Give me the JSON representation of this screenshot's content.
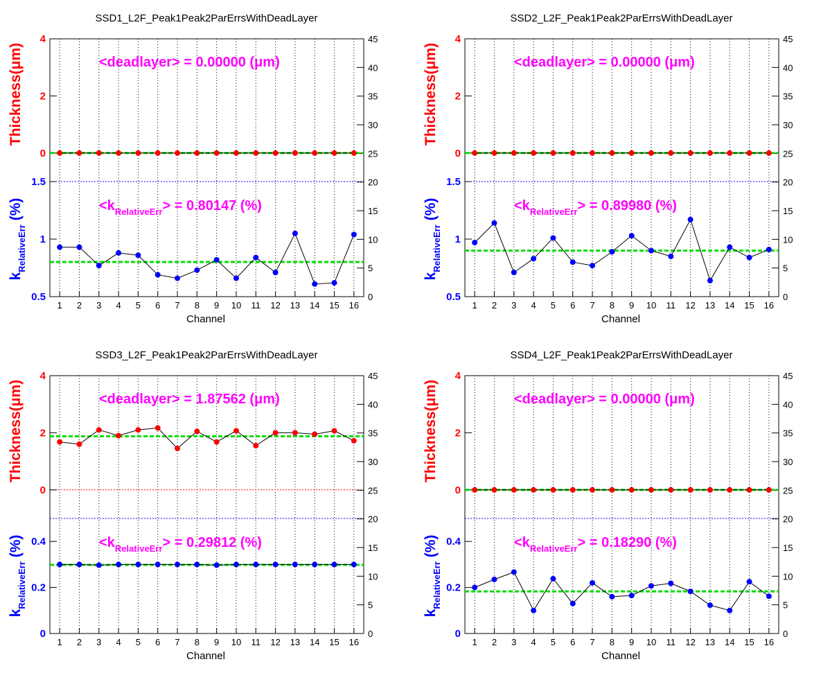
{
  "chart_data": [
    {
      "type": "scatter",
      "title": "SSD1_L2F_Peak1Peak2ParErrsWithDeadLayer",
      "xlabel": "Channel",
      "ylabel_top": "Thickness(μm)",
      "ylabel_bottom": "k",
      "ylabel_bottom_sub": "RelativeErr",
      "ylabel_bottom_unit": " (%)",
      "x": [
        1,
        2,
        3,
        4,
        5,
        6,
        7,
        8,
        9,
        10,
        11,
        12,
        13,
        14,
        15,
        16
      ],
      "x_ticks": [
        "1",
        "2",
        "3",
        "4",
        "5",
        "6",
        "7",
        "8",
        "9",
        "10",
        "11",
        "12",
        "13",
        "14",
        "15",
        "16"
      ],
      "top_ticks": [
        "0",
        "2",
        "4"
      ],
      "top_ylim": [
        -1,
        4
      ],
      "bottom_ticks": [
        "0.5",
        "1",
        "1.5"
      ],
      "bottom_ylim": [
        0.5,
        1.5
      ],
      "right_ticks": [
        "0",
        "5",
        "10",
        "15",
        "20",
        "25",
        "30",
        "35",
        "40",
        "45"
      ],
      "right_ylim": [
        0,
        45
      ],
      "series": [
        {
          "name": "deadlayer",
          "values": [
            0,
            0,
            0,
            0,
            0,
            0,
            0,
            0,
            0,
            0,
            0,
            0,
            0,
            0,
            0,
            0
          ]
        },
        {
          "name": "kRelativeErr",
          "values": [
            0.93,
            0.93,
            0.77,
            0.88,
            0.86,
            0.69,
            0.66,
            0.73,
            0.82,
            0.66,
            0.84,
            0.71,
            1.05,
            0.61,
            0.62,
            1.04
          ]
        }
      ],
      "mean_top": 0.0,
      "mean_bottom": 0.80147,
      "annot_top": "<deadlayer> = 0.00000 (μm)",
      "annot_bottom_pre": "<k",
      "annot_bottom_sub": "RelativeErr",
      "annot_bottom_post": "> = 0.80147 (%)",
      "grid_x": true
    },
    {
      "type": "scatter",
      "title": "SSD2_L2F_Peak1Peak2ParErrsWithDeadLayer",
      "xlabel": "Channel",
      "ylabel_top": "Thickness(μm)",
      "ylabel_bottom": "k",
      "ylabel_bottom_sub": "RelativeErr",
      "ylabel_bottom_unit": " (%)",
      "x": [
        1,
        2,
        3,
        4,
        5,
        6,
        7,
        8,
        9,
        10,
        11,
        12,
        13,
        14,
        15,
        16
      ],
      "x_ticks": [
        "1",
        "2",
        "3",
        "4",
        "5",
        "6",
        "7",
        "8",
        "9",
        "10",
        "11",
        "12",
        "13",
        "14",
        "15",
        "16"
      ],
      "top_ticks": [
        "0",
        "2",
        "4"
      ],
      "top_ylim": [
        -1,
        4
      ],
      "bottom_ticks": [
        "0.5",
        "1",
        "1.5"
      ],
      "bottom_ylim": [
        0.5,
        1.5
      ],
      "right_ticks": [
        "0",
        "5",
        "10",
        "15",
        "20",
        "25",
        "30",
        "35",
        "40",
        "45"
      ],
      "right_ylim": [
        0,
        45
      ],
      "series": [
        {
          "name": "deadlayer",
          "values": [
            0,
            0,
            0,
            0,
            0,
            0,
            0,
            0,
            0,
            0,
            0,
            0,
            0,
            0,
            0,
            0
          ]
        },
        {
          "name": "kRelativeErr",
          "values": [
            0.97,
            1.14,
            0.71,
            0.83,
            1.01,
            0.8,
            0.77,
            0.89,
            1.03,
            0.9,
            0.85,
            1.17,
            0.64,
            0.93,
            0.84,
            0.91
          ]
        }
      ],
      "mean_top": 0.0,
      "mean_bottom": 0.8998,
      "annot_top": "<deadlayer> = 0.00000 (μm)",
      "annot_bottom_pre": "<k",
      "annot_bottom_sub": "RelativeErr",
      "annot_bottom_post": "> = 0.89980 (%)",
      "grid_x": true
    },
    {
      "type": "scatter",
      "title": "SSD3_L2F_Peak1Peak2ParErrsWithDeadLayer",
      "xlabel": "Channel",
      "ylabel_top": "Thickness(μm)",
      "ylabel_bottom": "k",
      "ylabel_bottom_sub": "RelativeErr",
      "ylabel_bottom_unit": " (%)",
      "x": [
        1,
        2,
        3,
        4,
        5,
        6,
        7,
        8,
        9,
        10,
        11,
        12,
        13,
        14,
        15,
        16
      ],
      "x_ticks": [
        "1",
        "2",
        "3",
        "4",
        "5",
        "6",
        "7",
        "8",
        "9",
        "10",
        "11",
        "12",
        "13",
        "14",
        "15",
        "16"
      ],
      "top_ticks": [
        "0",
        "2",
        "4"
      ],
      "top_ylim": [
        -1,
        4
      ],
      "bottom_ticks": [
        "0",
        "0.2",
        "0.4"
      ],
      "bottom_ylim": [
        0,
        0.5
      ],
      "right_ticks": [
        "0",
        "5",
        "10",
        "15",
        "20",
        "25",
        "30",
        "35",
        "40",
        "45"
      ],
      "right_ylim": [
        0,
        45
      ],
      "series": [
        {
          "name": "deadlayer",
          "values": [
            1.68,
            1.6,
            2.1,
            1.9,
            2.1,
            2.17,
            1.45,
            2.05,
            1.68,
            2.07,
            1.55,
            2.0,
            2.0,
            1.95,
            2.07,
            1.72
          ]
        },
        {
          "name": "kRelativeErr",
          "values": [
            0.3,
            0.3,
            0.297,
            0.3,
            0.3,
            0.3,
            0.3,
            0.3,
            0.297,
            0.3,
            0.3,
            0.3,
            0.3,
            0.3,
            0.3,
            0.3
          ]
        }
      ],
      "mean_top": 1.87562,
      "mean_bottom": 0.29812,
      "annot_top": "<deadlayer> = 1.87562 (μm)",
      "annot_bottom_pre": "<k",
      "annot_bottom_sub": "RelativeErr",
      "annot_bottom_post": "> = 0.29812 (%)",
      "grid_x": true
    },
    {
      "type": "scatter",
      "title": "SSD4_L2F_Peak1Peak2ParErrsWithDeadLayer",
      "xlabel": "Channel",
      "ylabel_top": "Thickness(μm)",
      "ylabel_bottom": "k",
      "ylabel_bottom_sub": "RelativeErr",
      "ylabel_bottom_unit": " (%)",
      "x": [
        1,
        2,
        3,
        4,
        5,
        6,
        7,
        8,
        9,
        10,
        11,
        12,
        13,
        14,
        15,
        16
      ],
      "x_ticks": [
        "1",
        "2",
        "3",
        "4",
        "5",
        "6",
        "7",
        "8",
        "9",
        "10",
        "11",
        "12",
        "13",
        "14",
        "15",
        "16"
      ],
      "top_ticks": [
        "0",
        "2",
        "4"
      ],
      "top_ylim": [
        -1,
        4
      ],
      "bottom_ticks": [
        "0",
        "0.2",
        "0.4"
      ],
      "bottom_ylim": [
        0,
        0.5
      ],
      "right_ticks": [
        "0",
        "5",
        "10",
        "15",
        "20",
        "25",
        "30",
        "35",
        "40",
        "45"
      ],
      "right_ylim": [
        0,
        45
      ],
      "series": [
        {
          "name": "deadlayer",
          "values": [
            0,
            0,
            0,
            0,
            0,
            0,
            0,
            0,
            0,
            0,
            0,
            0,
            0,
            0,
            0,
            0
          ]
        },
        {
          "name": "kRelativeErr",
          "values": [
            0.2,
            0.235,
            0.267,
            0.1,
            0.238,
            0.13,
            0.22,
            0.16,
            0.165,
            0.207,
            0.218,
            0.183,
            0.123,
            0.1,
            0.225,
            0.162
          ]
        }
      ],
      "mean_top": 0.0,
      "mean_bottom": 0.1829,
      "annot_top": "<deadlayer> = 0.00000 (μm)",
      "annot_bottom_pre": "<k",
      "annot_bottom_sub": "RelativeErr",
      "annot_bottom_post": "> = 0.18290 (%)",
      "grid_x": true
    }
  ],
  "colors": {
    "top_axis": "#ff0000",
    "bottom_axis": "#0000ff",
    "mean_line": "#00dd00",
    "annotation": "#ff00ff",
    "connector": "#000000"
  }
}
